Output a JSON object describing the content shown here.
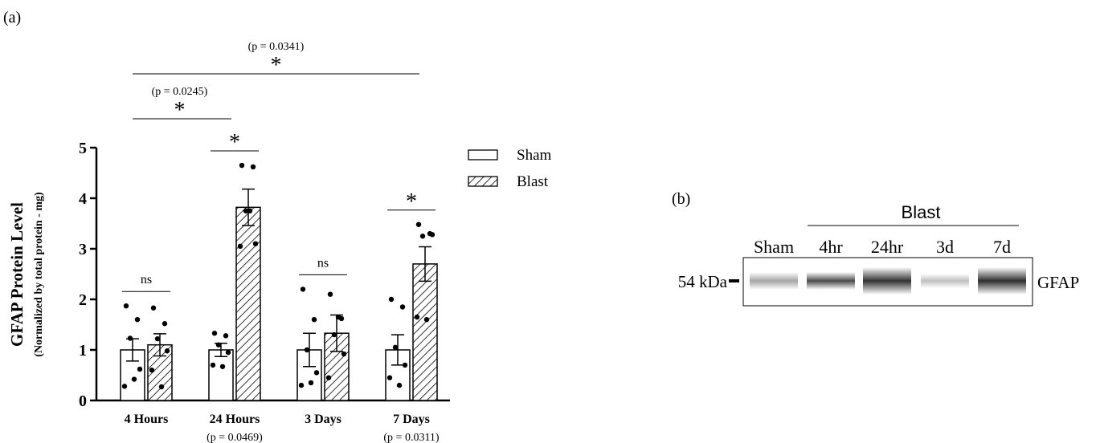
{
  "chart_data": {
    "type": "bar",
    "panel": "(a)",
    "ylabel": "GFAP Protein Level",
    "ylabel_sub": "(Normalized by total protein - mg)",
    "categories": [
      "4 Hours",
      "24 Hours",
      "3 Days",
      "7 Days"
    ],
    "category_notes": [
      null,
      "(p = 0.0469)",
      null,
      "(p = 0.0311)"
    ],
    "series": [
      {
        "name": "Sham",
        "color": "#ffffff",
        "hatch": false,
        "values": [
          1,
          1,
          1,
          1
        ],
        "errors": [
          0.22,
          0.13,
          0.33,
          0.3
        ],
        "points": [
          [
            1.87,
            1.6,
            1.23,
            0.62,
            0.28,
            0.42
          ],
          [
            1.33,
            1.28,
            1.1,
            0.95,
            0.7,
            0.67
          ],
          [
            2.2,
            1.6,
            1.0,
            0.55,
            0.3,
            0.35
          ],
          [
            2.0,
            1.85,
            1.05,
            0.7,
            0.45,
            0.3
          ]
        ]
      },
      {
        "name": "Blast",
        "color": "#ffffff",
        "hatch": true,
        "values": [
          1.1,
          3.82,
          1.33,
          2.7
        ],
        "errors": [
          0.22,
          0.36,
          0.36,
          0.34
        ],
        "points": [
          [
            1.83,
            1.52,
            1.22,
            0.98,
            0.6,
            0.27
          ],
          [
            4.65,
            4.62,
            3.75,
            3.1,
            3.05,
            3.75
          ],
          [
            2.1,
            1.62,
            1.3,
            0.92,
            0.45,
            1.65
          ],
          [
            3.48,
            3.3,
            3.25,
            3.28,
            1.65,
            1.6
          ]
        ]
      }
    ],
    "pair_labels": [
      "ns",
      "*",
      "ns",
      "*"
    ],
    "comparisons": [
      {
        "label": "*",
        "p": "(p = 0.0245)"
      },
      {
        "label": "*",
        "p": "(p = 0.0341)"
      }
    ],
    "ylim": [
      0,
      5
    ],
    "yticks": [
      0,
      1,
      2,
      3,
      4,
      5
    ],
    "legend": "top-right"
  },
  "blot": {
    "panel": "(b)",
    "group_label": "Blast",
    "lanes": [
      "Sham",
      "4hr",
      "24hr",
      "3d",
      "7d"
    ],
    "marker": "54 kDa",
    "protein": "GFAP"
  }
}
